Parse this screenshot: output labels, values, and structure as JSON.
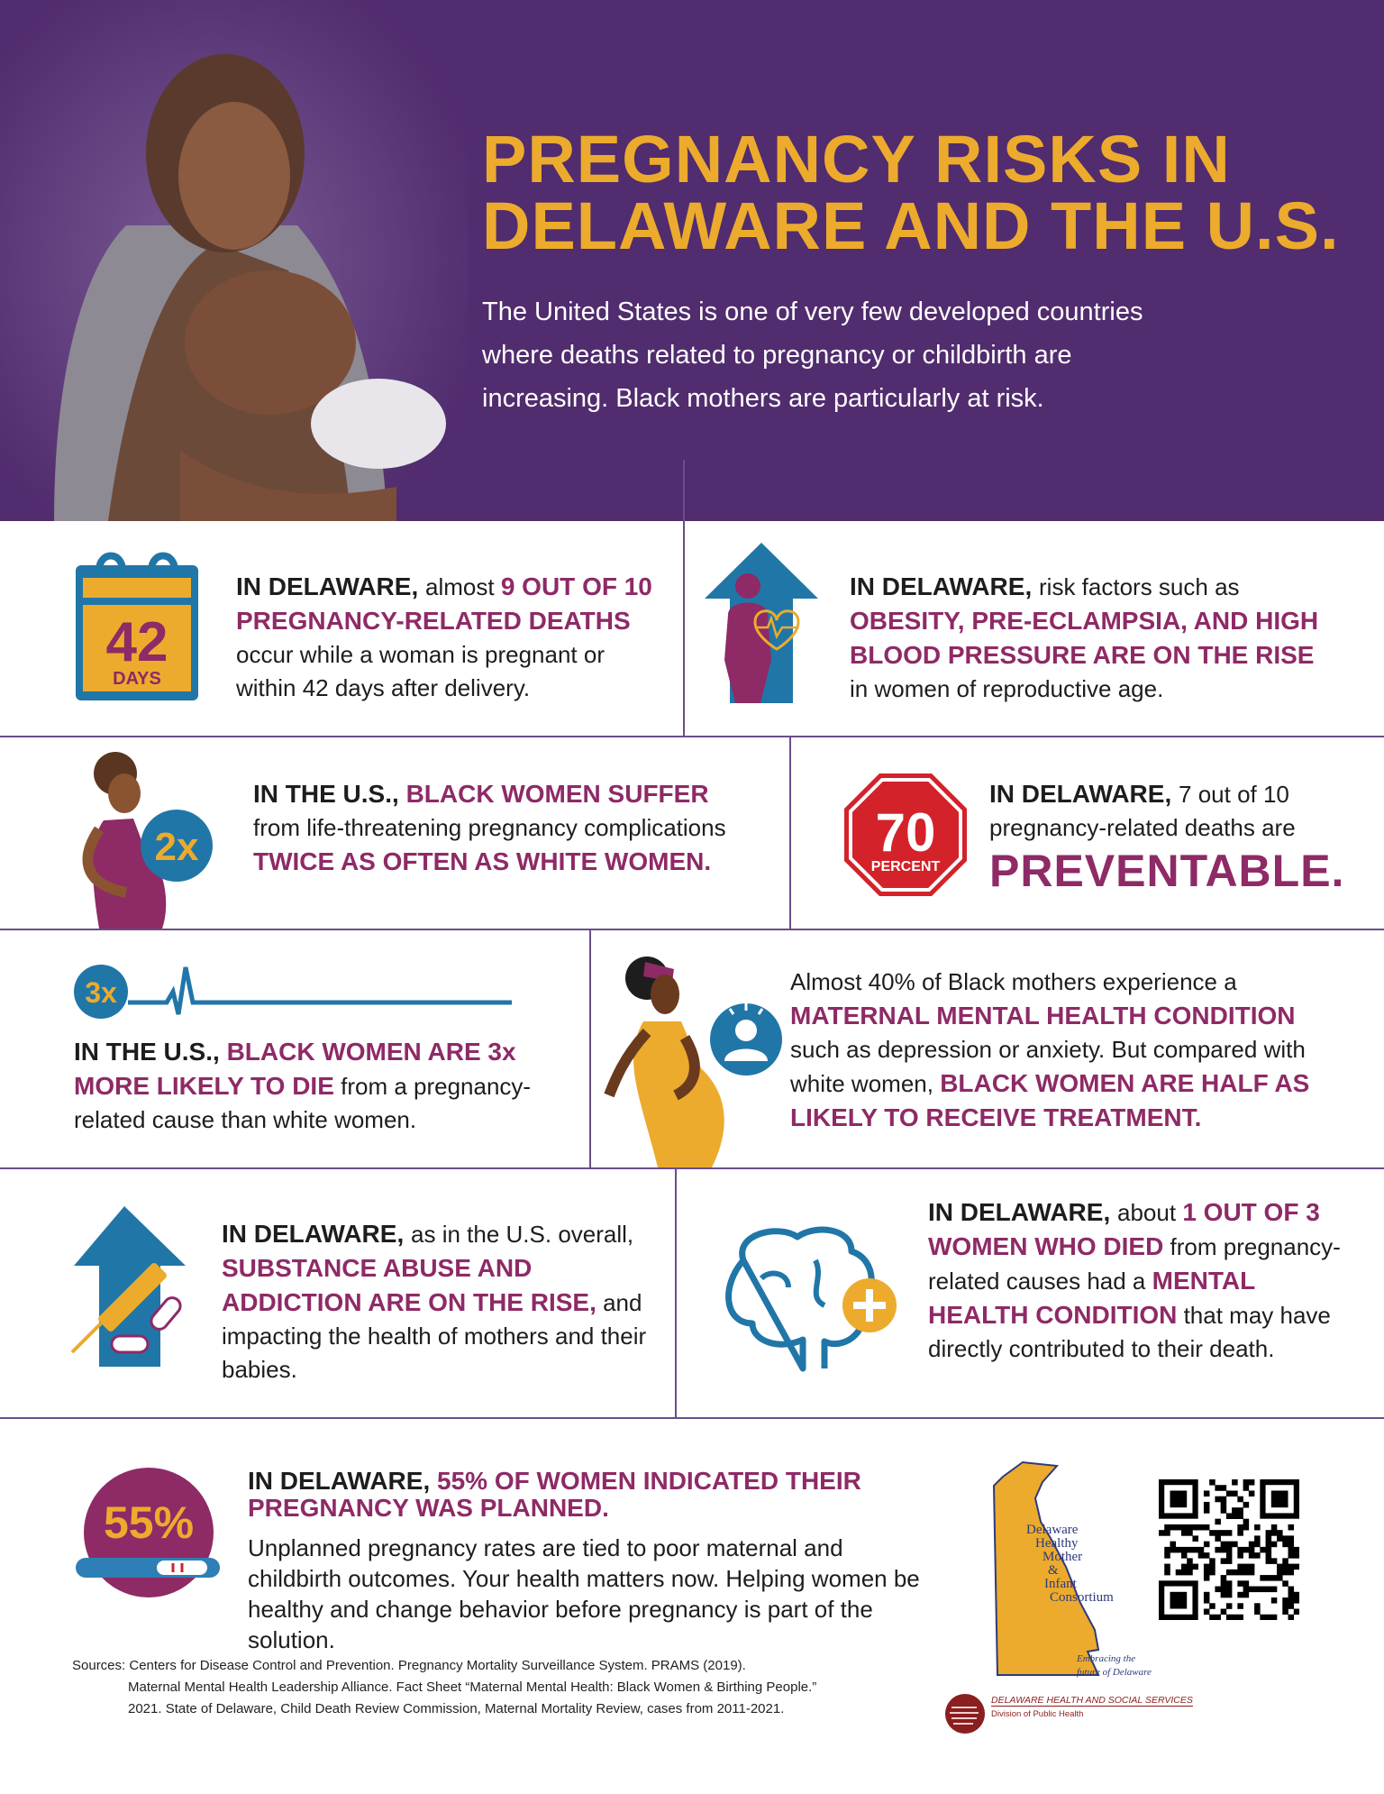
{
  "header": {
    "title_line1": "PREGNANCY RISKS IN",
    "title_line2": "DELAWARE AND THE U.S.",
    "intro": "The United States is one of very few developed countries where deaths related to pregnancy or childbirth are increasing. Black mothers are particularly at risk.",
    "photo": "mother-holding-newborn-photo"
  },
  "colors": {
    "purple": "#512c6e",
    "gold": "#ecab2d",
    "magenta": "#8e2a66",
    "blue": "#2176a8",
    "red": "#d3222a"
  },
  "facts": [
    {
      "icon": "calendar-icon",
      "icon_number": "42",
      "icon_label": "DAYS",
      "parts": [
        {
          "t": "IN DELAWARE, ",
          "s": "k"
        },
        {
          "t": "almost ",
          "s": "n"
        },
        {
          "t": "9 OUT OF 10 PREGNANCY-RELATED DEATHS",
          "s": "m"
        },
        {
          "t": " occur while a woman is pregnant or within 42 days after delivery.",
          "s": "n"
        }
      ]
    },
    {
      "icon": "rising-arrow-body-heart-icon",
      "parts": [
        {
          "t": "IN DELAWARE, ",
          "s": "k"
        },
        {
          "t": "risk factors such as ",
          "s": "n"
        },
        {
          "t": "OBESITY, PRE-ECLAMPSIA, AND HIGH BLOOD PRESSURE ARE ON THE RISE",
          "s": "m"
        },
        {
          "t": " in women of reproductive age.",
          "s": "n"
        }
      ]
    },
    {
      "icon": "pregnant-woman-2x-icon",
      "icon_label": "2x",
      "parts": [
        {
          "t": "IN THE U.S., ",
          "s": "k"
        },
        {
          "t": "BLACK WOMEN SUFFER",
          "s": "m"
        },
        {
          "t": " from life-threatening pregnancy complications ",
          "s": "n"
        },
        {
          "t": "TWICE AS OFTEN AS WHITE WOMEN.",
          "s": "m"
        }
      ]
    },
    {
      "icon": "stop-sign-icon",
      "icon_number": "70",
      "icon_label": "PERCENT",
      "parts": [
        {
          "t": "IN DELAWARE, ",
          "s": "k"
        },
        {
          "t": "7 out of 10 pregnancy-related deaths are ",
          "s": "n"
        },
        {
          "t": "PREVENTABLE.",
          "s": "big"
        }
      ]
    },
    {
      "icon": "heartbeat-line-3x-icon",
      "icon_label": "3x",
      "parts": [
        {
          "t": "IN THE U.S., ",
          "s": "k"
        },
        {
          "t": "BLACK WOMEN ARE 3x MORE LIKELY TO DIE",
          "s": "m"
        },
        {
          "t": " from a pregnancy-related cause than white women.",
          "s": "n"
        }
      ]
    },
    {
      "icon": "pregnant-woman-mental-health-icon",
      "parts": [
        {
          "t": "Almost 40% of Black mothers experience a ",
          "s": "n"
        },
        {
          "t": "MATERNAL MENTAL HEALTH CONDITION",
          "s": "m"
        },
        {
          "t": " such as depression or anxiety. But compared with white women, ",
          "s": "n"
        },
        {
          "t": "BLACK WOMEN ARE HALF AS LIKELY TO RECEIVE TREATMENT.",
          "s": "m"
        }
      ]
    },
    {
      "icon": "rising-arrow-syringe-pills-icon",
      "parts": [
        {
          "t": "IN DELAWARE, ",
          "s": "k"
        },
        {
          "t": "as in the U.S. overall, ",
          "s": "n"
        },
        {
          "t": "SUBSTANCE ABUSE AND ADDICTION ARE ON THE RISE,",
          "s": "m"
        },
        {
          "t": " and impacting the health of mothers and their babies.",
          "s": "n"
        }
      ]
    },
    {
      "icon": "brain-plus-icon",
      "parts": [
        {
          "t": "IN DELAWARE, ",
          "s": "k"
        },
        {
          "t": "about ",
          "s": "n"
        },
        {
          "t": "1 OUT OF 3 WOMEN WHO DIED",
          "s": "m"
        },
        {
          "t": " from pregnancy-related causes had a ",
          "s": "n"
        },
        {
          "t": "MENTAL HEALTH CONDITION",
          "s": "m"
        },
        {
          "t": " that may have directly contributed to their death.",
          "s": "n"
        }
      ]
    },
    {
      "icon": "pregnancy-test-55-icon",
      "icon_label": "55%",
      "parts": [
        {
          "t": "IN DELAWARE, ",
          "s": "k"
        },
        {
          "t": "55% OF WOMEN INDICATED THEIR PREGNANCY WAS PLANNED.",
          "s": "m"
        }
      ]
    }
  ],
  "planned_body": "Unplanned pregnancy rates are tied to poor maternal and childbirth outcomes. Your health matters now. Helping women be healthy and change behavior before pregnancy is part of the solution.",
  "sources": {
    "label": "Sources:",
    "line1": "Centers for Disease Control and Prevention. Pregnancy Mortality Surveillance System. PRAMS (2019).",
    "line2": "Maternal Mental Health Leadership Alliance. Fact Sheet “Maternal Mental Health: Black Women & Birthing People.”",
    "line3": "2021. State of Delaware, Child Death Review Commission, Maternal Mortality Review, cases from 2011-2021."
  },
  "logos": {
    "consortium": [
      "Delaware",
      "Healthy",
      "Mother",
      "&",
      "Infant",
      "Consortium"
    ],
    "tagline1": "Embracing the",
    "tagline2": "future of Delaware",
    "dhss_title": "DELAWARE HEALTH AND SOCIAL SERVICES",
    "dhss_sub": "Division of Public Health",
    "qr": "qr-code"
  }
}
